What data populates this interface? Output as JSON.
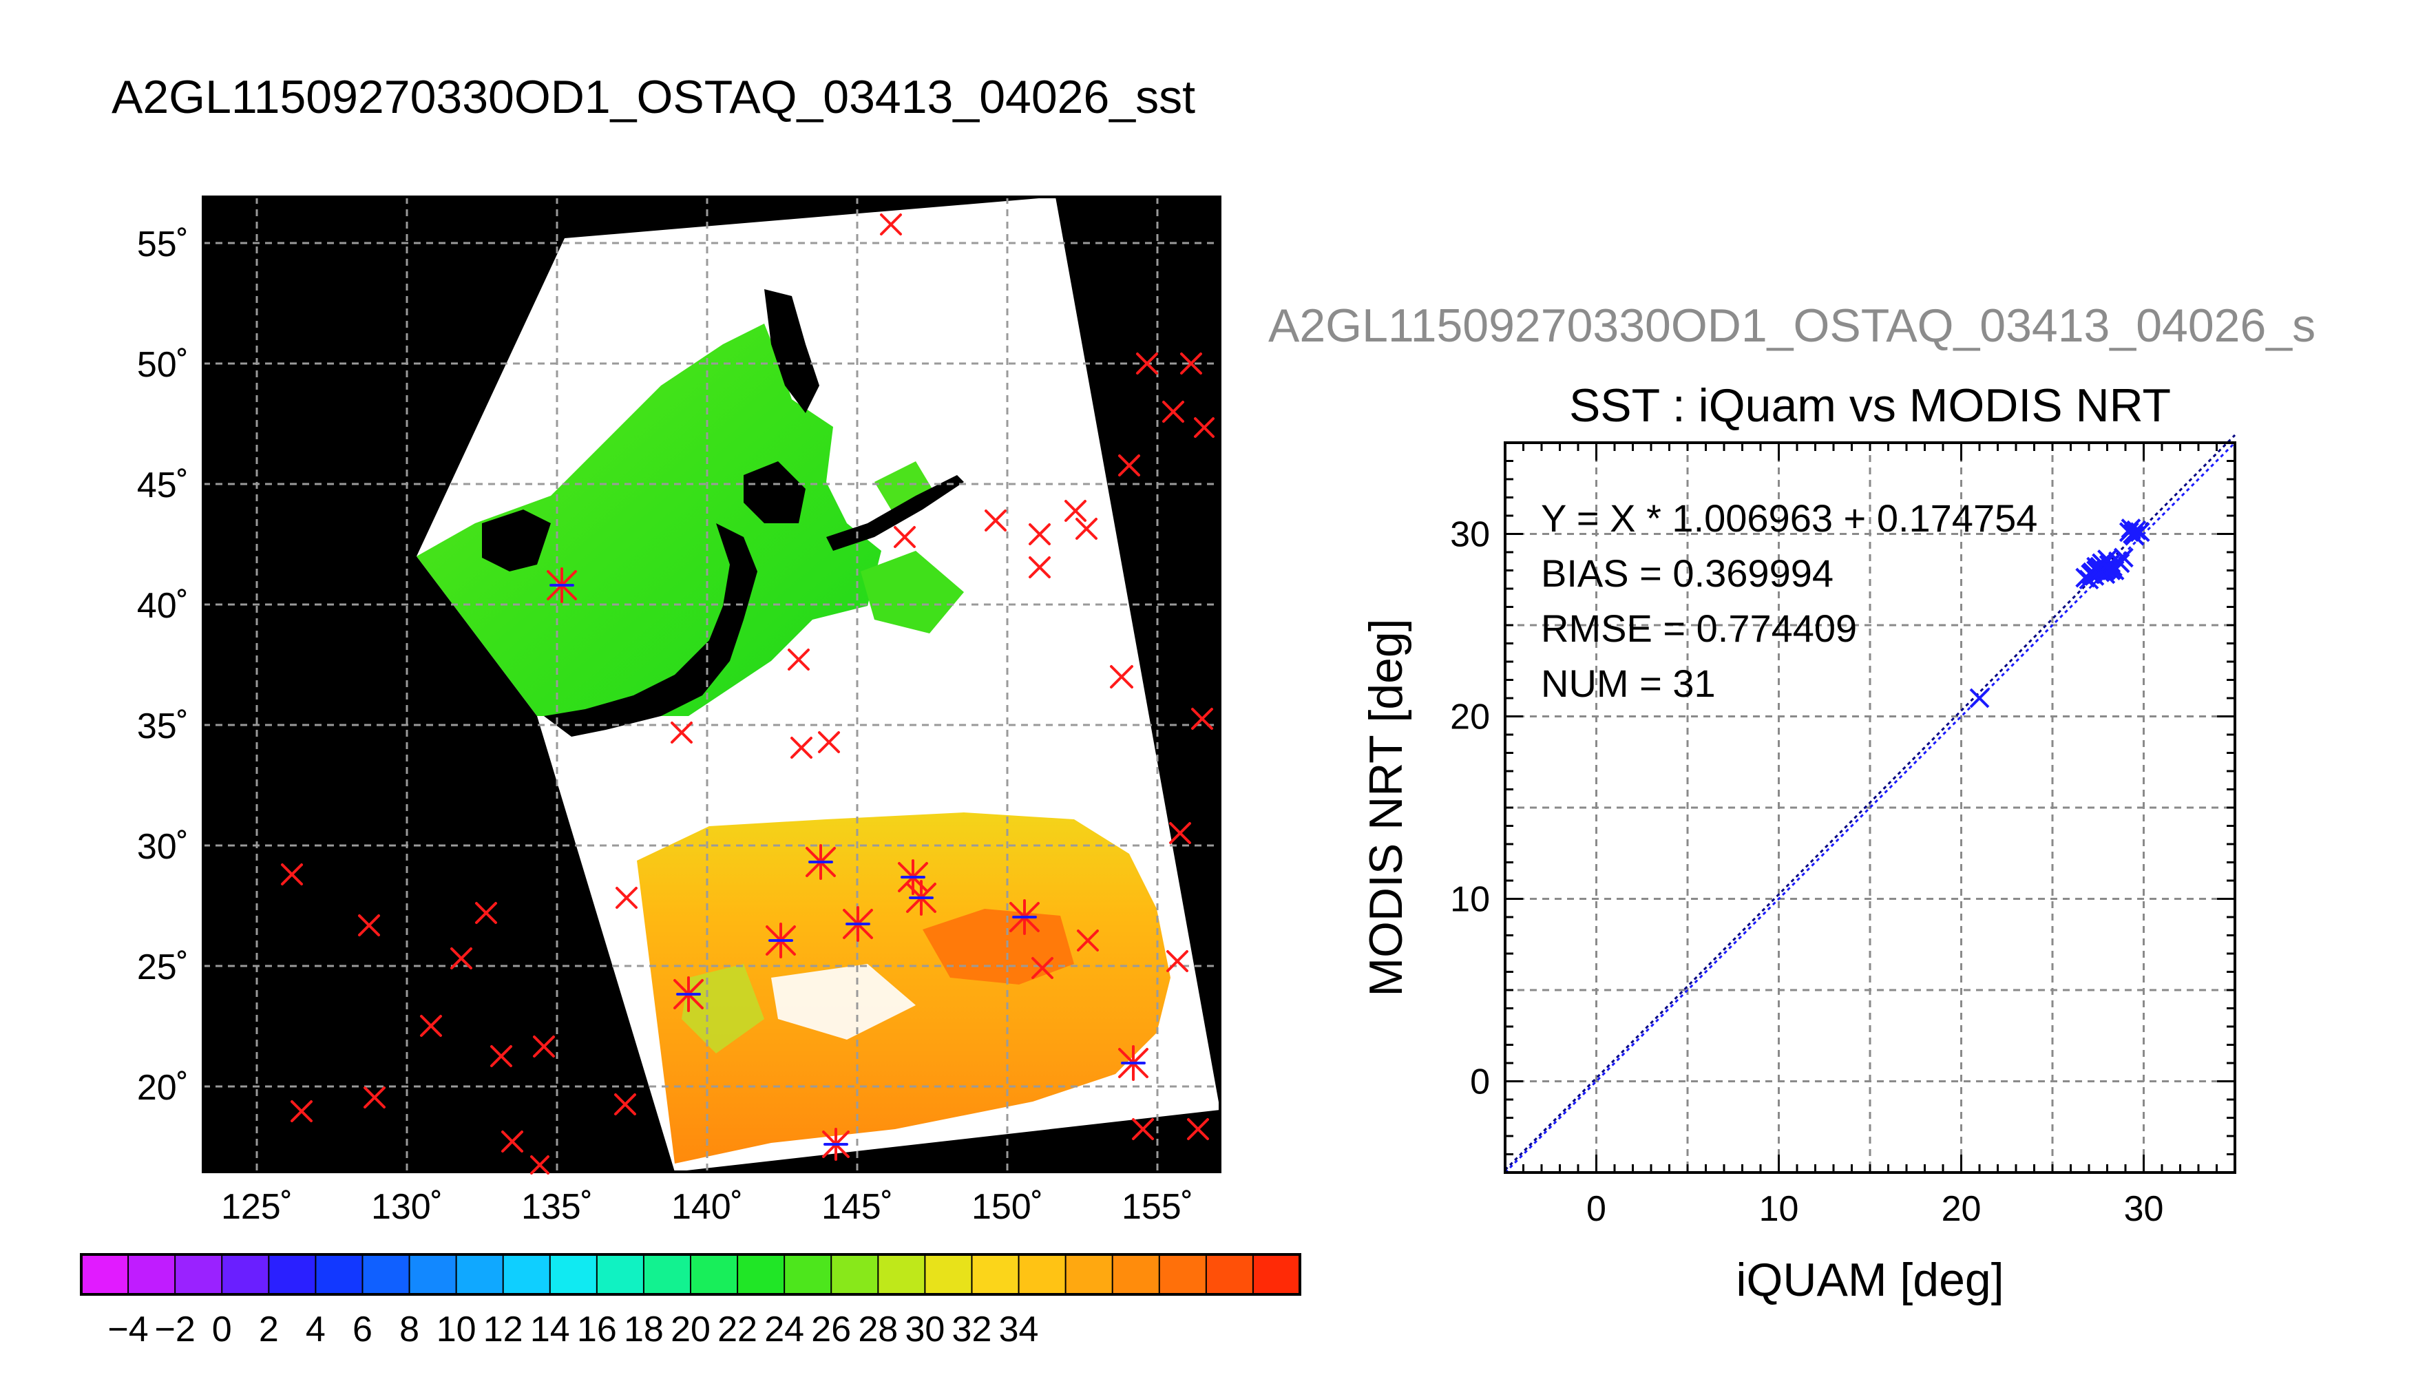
{
  "main_title": "A2GL11509270330OD1_OSTAQ_03413_04026_sst",
  "scatter_header": "A2GL11509270330OD1_OSTAQ_03413_04026_s",
  "map": {
    "lon_ticks": [
      "125˚",
      "130˚",
      "135˚",
      "140˚",
      "145˚",
      "150˚",
      "155˚"
    ],
    "lat_ticks": [
      "55˚",
      "50˚",
      "45˚",
      "40˚",
      "35˚",
      "30˚",
      "25˚",
      "20˚"
    ],
    "colors": {
      "land": "#000000",
      "cloud": "#ffffff",
      "grid": "#9a9a9a",
      "marker_red": "#ff1a1a",
      "marker_blue": "#1a1aff"
    }
  },
  "colorbar": {
    "labels": [
      "−4",
      "−2",
      "0",
      "2",
      "4",
      "6",
      "8",
      "10",
      "12",
      "14",
      "16",
      "18",
      "20",
      "22",
      "24",
      "26",
      "28",
      "30",
      "32",
      "34"
    ],
    "colors": [
      "#e11bff",
      "#c01cff",
      "#9a22ff",
      "#6a1fff",
      "#2a20ff",
      "#1238ff",
      "#1060ff",
      "#1288ff",
      "#10a8ff",
      "#0fcfff",
      "#10eaf2",
      "#10f2c2",
      "#12f290",
      "#18ee5a",
      "#20e626",
      "#4de61c",
      "#88e81a",
      "#bfe81a",
      "#e8e21a",
      "#fbd51a",
      "#ffc314",
      "#ffa810",
      "#ff8c0c",
      "#ff700a",
      "#ff5008",
      "#ff2a06"
    ]
  },
  "chart_data": {
    "type": "scatter",
    "title": "SST : iQuam vs MODIS NRT",
    "xlabel": "iQUAM [deg]",
    "ylabel": "MODIS NRT [deg]",
    "xlim": [
      -5,
      35
    ],
    "ylim": [
      -5,
      35
    ],
    "x_ticks": [
      "0",
      "10",
      "20",
      "30"
    ],
    "y_ticks": [
      "0",
      "10",
      "20",
      "30"
    ],
    "grid": true,
    "stats": [
      "Y = X * 1.006963 + 0.174754",
      "BIAS = 0.369994",
      "RMSE = 0.774409",
      "NUM = 31"
    ],
    "fit": {
      "slope": 1.006963,
      "intercept": 0.174754
    },
    "series": [
      {
        "color": "#1a1aff",
        "x": [
          21.0,
          26.8,
          27.1,
          27.4,
          27.6,
          27.8,
          28.0,
          28.2,
          27.3,
          27.5,
          27.9,
          28.3,
          28.6,
          28.9,
          27.2,
          27.7,
          28.1,
          28.4,
          27.0,
          27.6,
          28.0,
          29.2,
          29.4,
          29.6,
          29.8,
          29.3,
          29.5,
          27.9,
          28.2,
          27.4,
          28.7
        ],
        "y": [
          21.0,
          27.6,
          27.8,
          28.0,
          28.2,
          28.3,
          28.1,
          28.4,
          27.7,
          28.1,
          28.0,
          28.2,
          28.5,
          28.7,
          27.9,
          28.4,
          28.3,
          28.0,
          27.5,
          27.9,
          28.6,
          30.1,
          30.0,
          30.2,
          30.1,
          30.3,
          29.9,
          27.8,
          28.0,
          28.2,
          28.4
        ]
      }
    ]
  }
}
